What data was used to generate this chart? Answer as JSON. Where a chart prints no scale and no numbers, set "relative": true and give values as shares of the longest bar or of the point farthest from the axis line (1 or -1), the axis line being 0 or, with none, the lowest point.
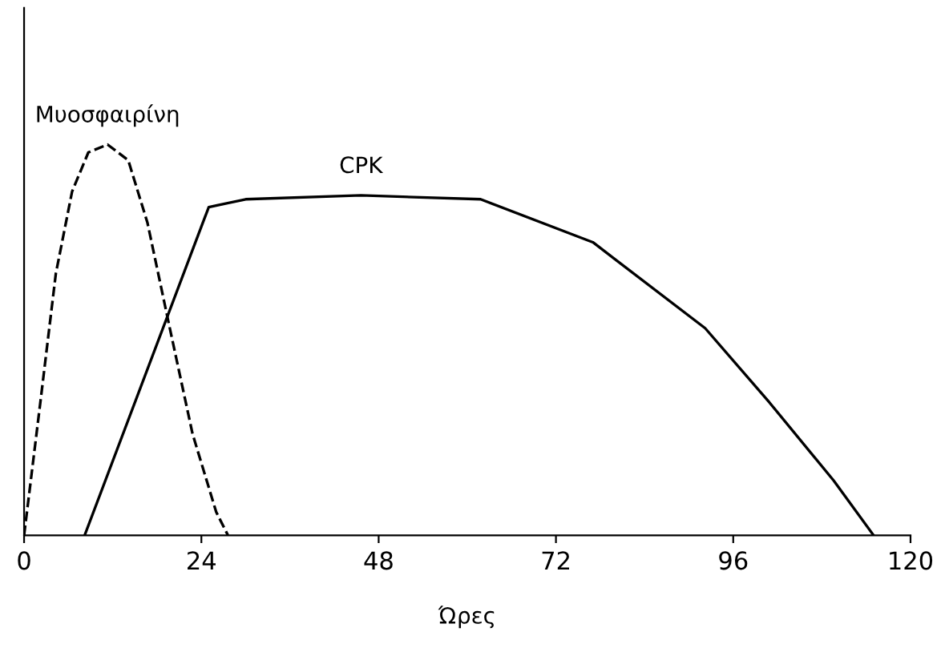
{
  "chart_data": {
    "type": "line",
    "relative": true,
    "xlabel": "Ώρες",
    "xlim": [
      0,
      120
    ],
    "xticks": [
      0,
      24,
      48,
      72,
      96,
      120
    ],
    "grid": false,
    "legend": false,
    "marker": "none",
    "series": [
      {
        "name": "Μυοσφαιρίνη",
        "color": "#000000",
        "line_style": "dashed",
        "x": [
          0,
          2.2,
          4.3,
          6.5,
          8.7,
          11.3,
          14.1,
          16.7,
          19.5,
          22.8,
          26.0,
          27.6
        ],
        "values": [
          0,
          0.34,
          0.67,
          0.88,
          0.98,
          1,
          0.96,
          0.8,
          0.55,
          0.26,
          0.06,
          0
        ]
      },
      {
        "name": "CPK",
        "color": "#000000",
        "line_style": "solid",
        "x": [
          8.2,
          22.4,
          25,
          30,
          45.6,
          61.8,
          77,
          92.2,
          100.9,
          109.6,
          115
        ],
        "values": [
          0,
          0.71,
          0.84,
          0.86,
          0.87,
          0.86,
          0.75,
          0.53,
          0.34,
          0.14,
          0
        ]
      }
    ]
  }
}
